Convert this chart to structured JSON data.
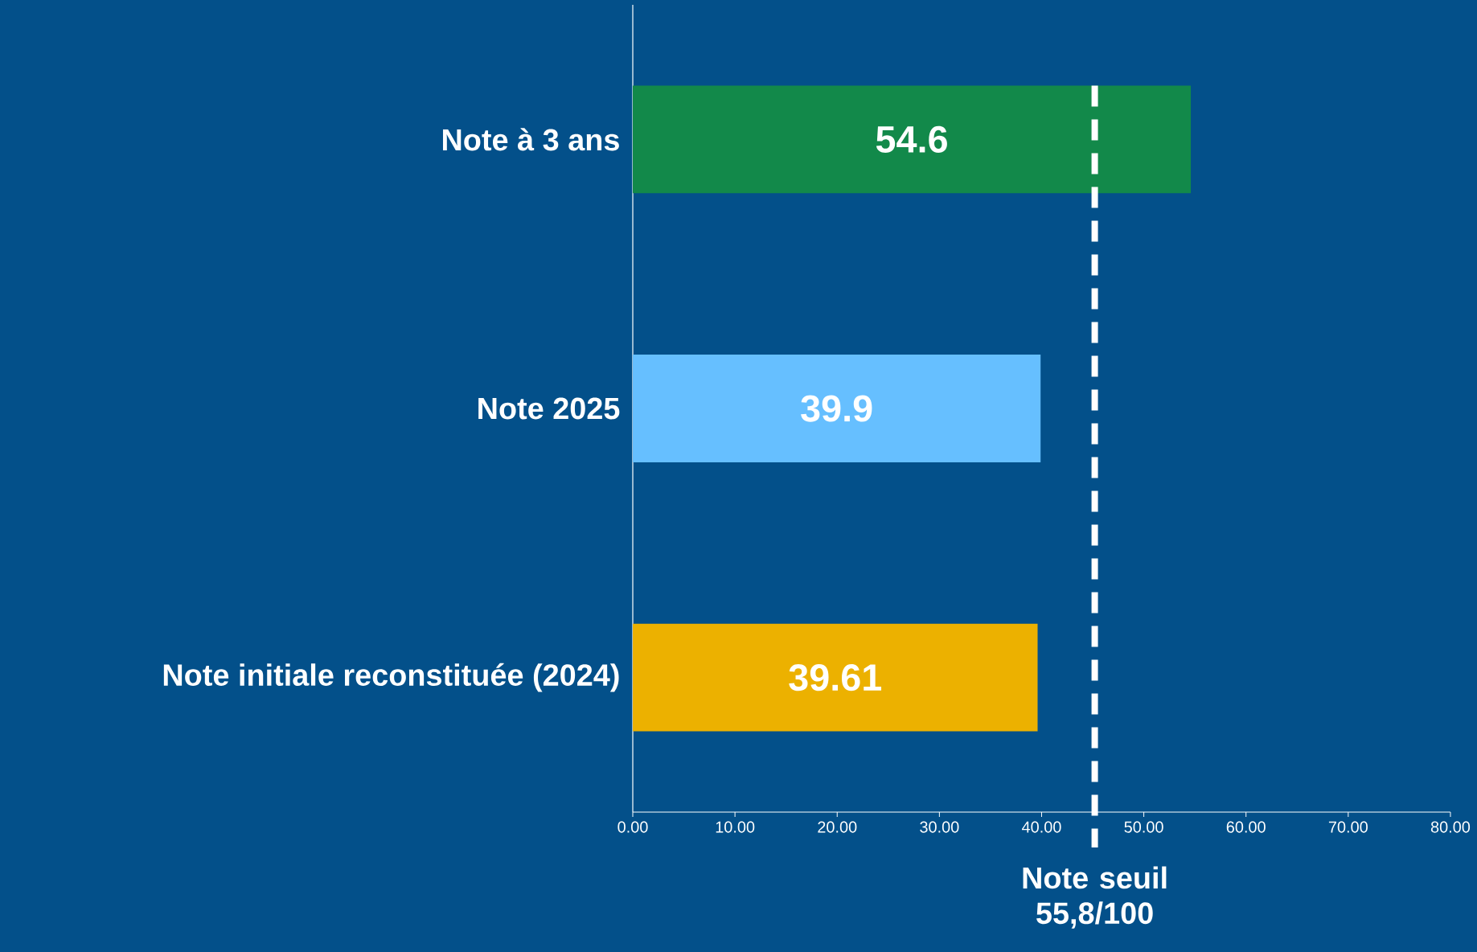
{
  "chart_data": {
    "type": "bar",
    "orientation": "horizontal",
    "categories": [
      "Note à 3 ans",
      "Note 2025",
      "Note initiale reconstituée (2024)"
    ],
    "values": [
      54.6,
      39.9,
      39.61
    ],
    "colors": [
      "#12894a",
      "#66bfff",
      "#ecb100"
    ],
    "data_labels": true,
    "xlim": [
      0,
      80
    ],
    "xticks": [
      {
        "value": 0,
        "label": "0.00"
      },
      {
        "value": 10,
        "label": "10.00"
      },
      {
        "value": 20,
        "label": "20.00"
      },
      {
        "value": 30,
        "label": "30.00"
      },
      {
        "value": 40,
        "label": "40.00"
      },
      {
        "value": 50,
        "label": "50.00"
      },
      {
        "value": 60,
        "label": "60.00"
      },
      {
        "value": 70,
        "label": "70.00"
      },
      {
        "value": 80,
        "label": "80.00"
      }
    ],
    "ref_lines": [
      {
        "axis": "x",
        "value": 45.2,
        "label": "Note seuil 55,8/100",
        "color": "#ffffff",
        "line_style": "dashed"
      }
    ]
  }
}
